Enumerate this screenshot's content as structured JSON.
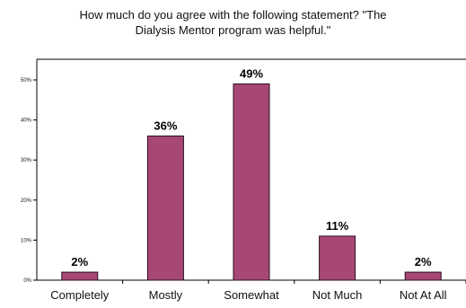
{
  "chart_data": {
    "type": "bar",
    "title_lines": [
      "How much do you agree with the following statement? \"The",
      "Dialysis Mentor program was helpful.\""
    ],
    "categories": [
      "Completely",
      "Mostly",
      "Somewhat",
      "Not Much",
      "Not At All"
    ],
    "values": [
      2,
      36,
      49,
      11,
      2
    ],
    "data_labels": [
      "2%",
      "36%",
      "49%",
      "11%",
      "2%"
    ],
    "yticks": [
      {
        "value": 0,
        "label": "0%"
      },
      {
        "value": 10,
        "label": "10%"
      },
      {
        "value": 20,
        "label": "20%"
      },
      {
        "value": 30,
        "label": "30%"
      },
      {
        "value": 40,
        "label": "40%"
      },
      {
        "value": 50,
        "label": "50%"
      }
    ],
    "ylim": [
      0,
      50
    ],
    "xlabel": "",
    "ylabel": "",
    "grid": false,
    "legend": "none",
    "colors": {
      "bar_fill": "#A74776",
      "bar_stroke": "#2b0f1f",
      "axis": "#000000"
    }
  }
}
